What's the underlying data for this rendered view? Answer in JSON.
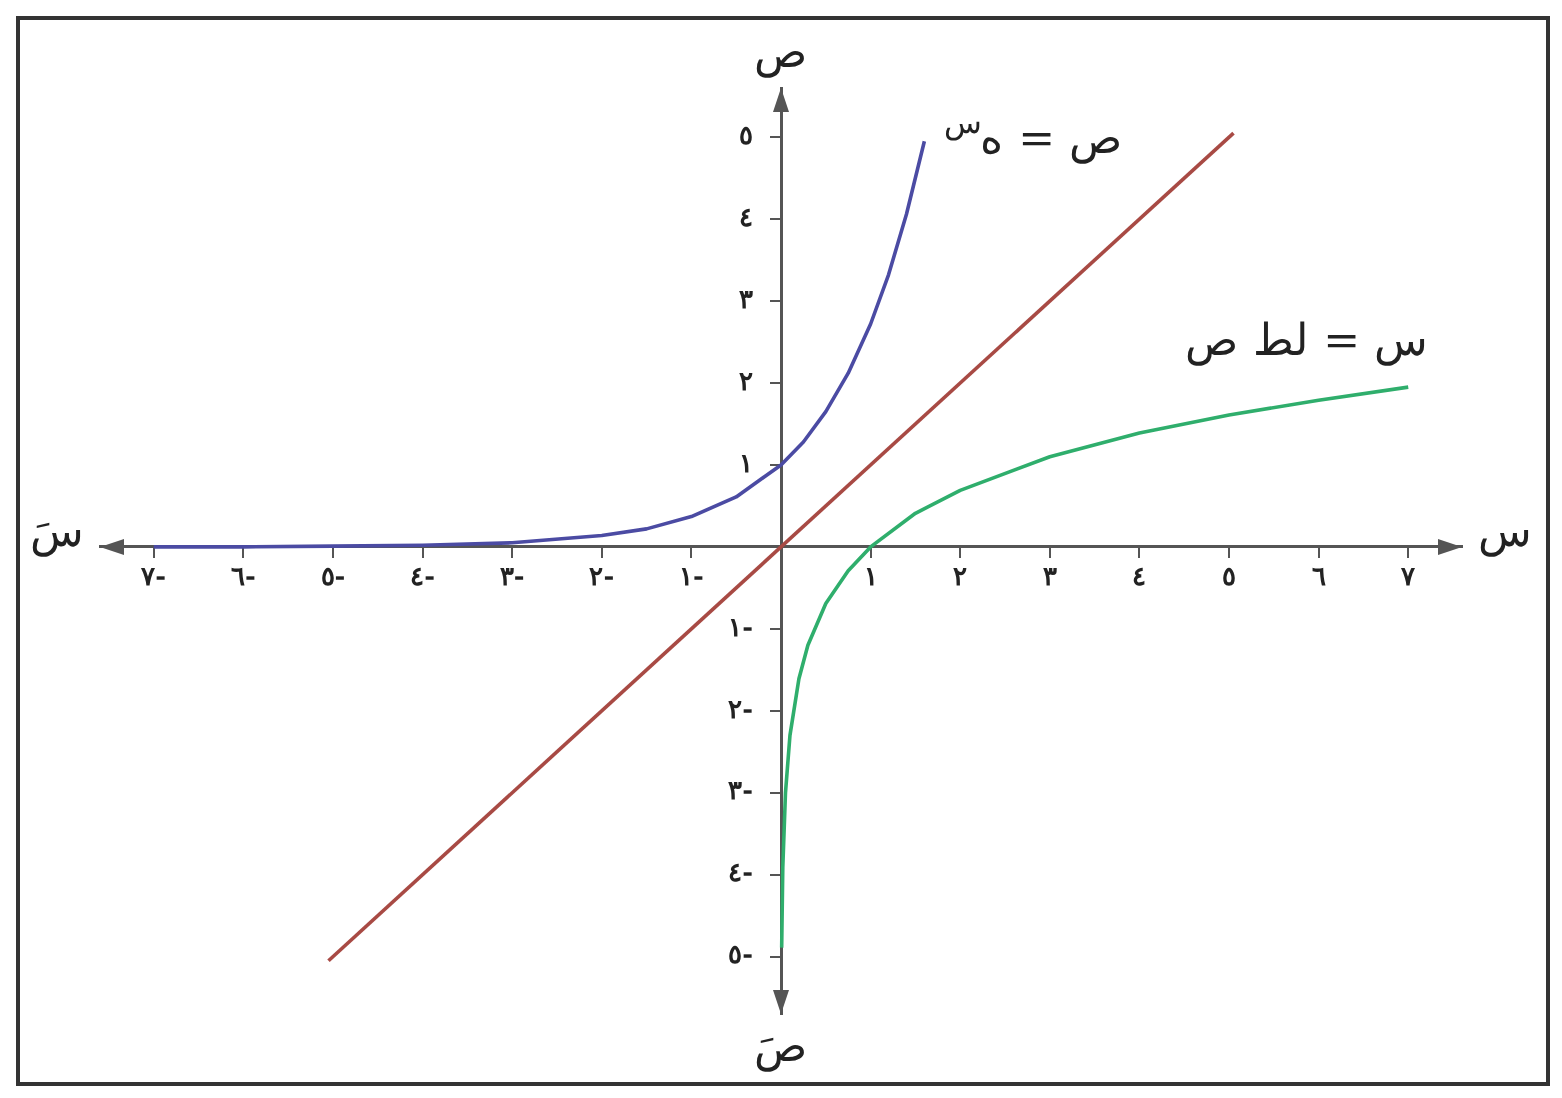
{
  "chart_data": {
    "type": "line",
    "xlabel": "س",
    "ylabel": "ص",
    "annotations": [
      "سَ",
      "صَ"
    ],
    "xlim": [
      -7.6,
      7.6
    ],
    "ylim": [
      -5.7,
      5.6
    ],
    "xticks": [
      {
        "value": -7,
        "label": "٧-"
      },
      {
        "value": -6,
        "label": "٦-"
      },
      {
        "value": -5,
        "label": "٥-"
      },
      {
        "value": -4,
        "label": "٤-"
      },
      {
        "value": -3,
        "label": "٣-"
      },
      {
        "value": -2,
        "label": "٢-"
      },
      {
        "value": -1,
        "label": "١-"
      },
      {
        "value": 1,
        "label": "١"
      },
      {
        "value": 2,
        "label": "٢"
      },
      {
        "value": 3,
        "label": "٣"
      },
      {
        "value": 4,
        "label": "٤"
      },
      {
        "value": 5,
        "label": "٥"
      },
      {
        "value": 6,
        "label": "٦"
      },
      {
        "value": 7,
        "label": "٧"
      }
    ],
    "yticks": [
      {
        "value": -5,
        "label": "٥-"
      },
      {
        "value": -4,
        "label": "٤-"
      },
      {
        "value": -3,
        "label": "٣-"
      },
      {
        "value": -2,
        "label": "٢-"
      },
      {
        "value": -1,
        "label": "١-"
      },
      {
        "value": 1,
        "label": "١"
      },
      {
        "value": 2,
        "label": "٢"
      },
      {
        "value": 3,
        "label": "٣"
      },
      {
        "value": 4,
        "label": "٤"
      },
      {
        "value": 5,
        "label": "٥"
      }
    ],
    "grid": false,
    "legend": false,
    "marker": "none",
    "line_style": "solid",
    "series": [
      {
        "name": "ص = ه$^{س}$",
        "color": "#4b4ba3",
        "x": [
          -7,
          -6,
          -5,
          -4,
          -3,
          -2,
          -1.5,
          -1,
          -0.5,
          0,
          0.25,
          0.5,
          0.75,
          1,
          1.2,
          1.4,
          1.6
        ],
        "values": [
          0,
          0,
          0.01,
          0.02,
          0.05,
          0.14,
          0.22,
          0.37,
          0.61,
          1,
          1.28,
          1.65,
          2.12,
          2.72,
          3.32,
          4.06,
          4.95
        ]
      },
      {
        "color": "#a84a44",
        "x": [
          -5.05,
          5.05
        ],
        "values": [
          -5.05,
          5.05
        ]
      },
      {
        "name": "س = لط ص",
        "color": "#2fae6c",
        "x": [
          0.0075,
          0.02,
          0.05,
          0.1,
          0.2,
          0.3,
          0.5,
          0.75,
          1,
          1.5,
          2,
          3,
          4,
          5,
          6,
          7
        ],
        "values": [
          -4.89,
          -3.91,
          -3,
          -2.3,
          -1.61,
          -1.2,
          -0.69,
          -0.29,
          0,
          0.41,
          0.69,
          1.1,
          1.39,
          1.61,
          1.79,
          1.95
        ]
      }
    ]
  }
}
